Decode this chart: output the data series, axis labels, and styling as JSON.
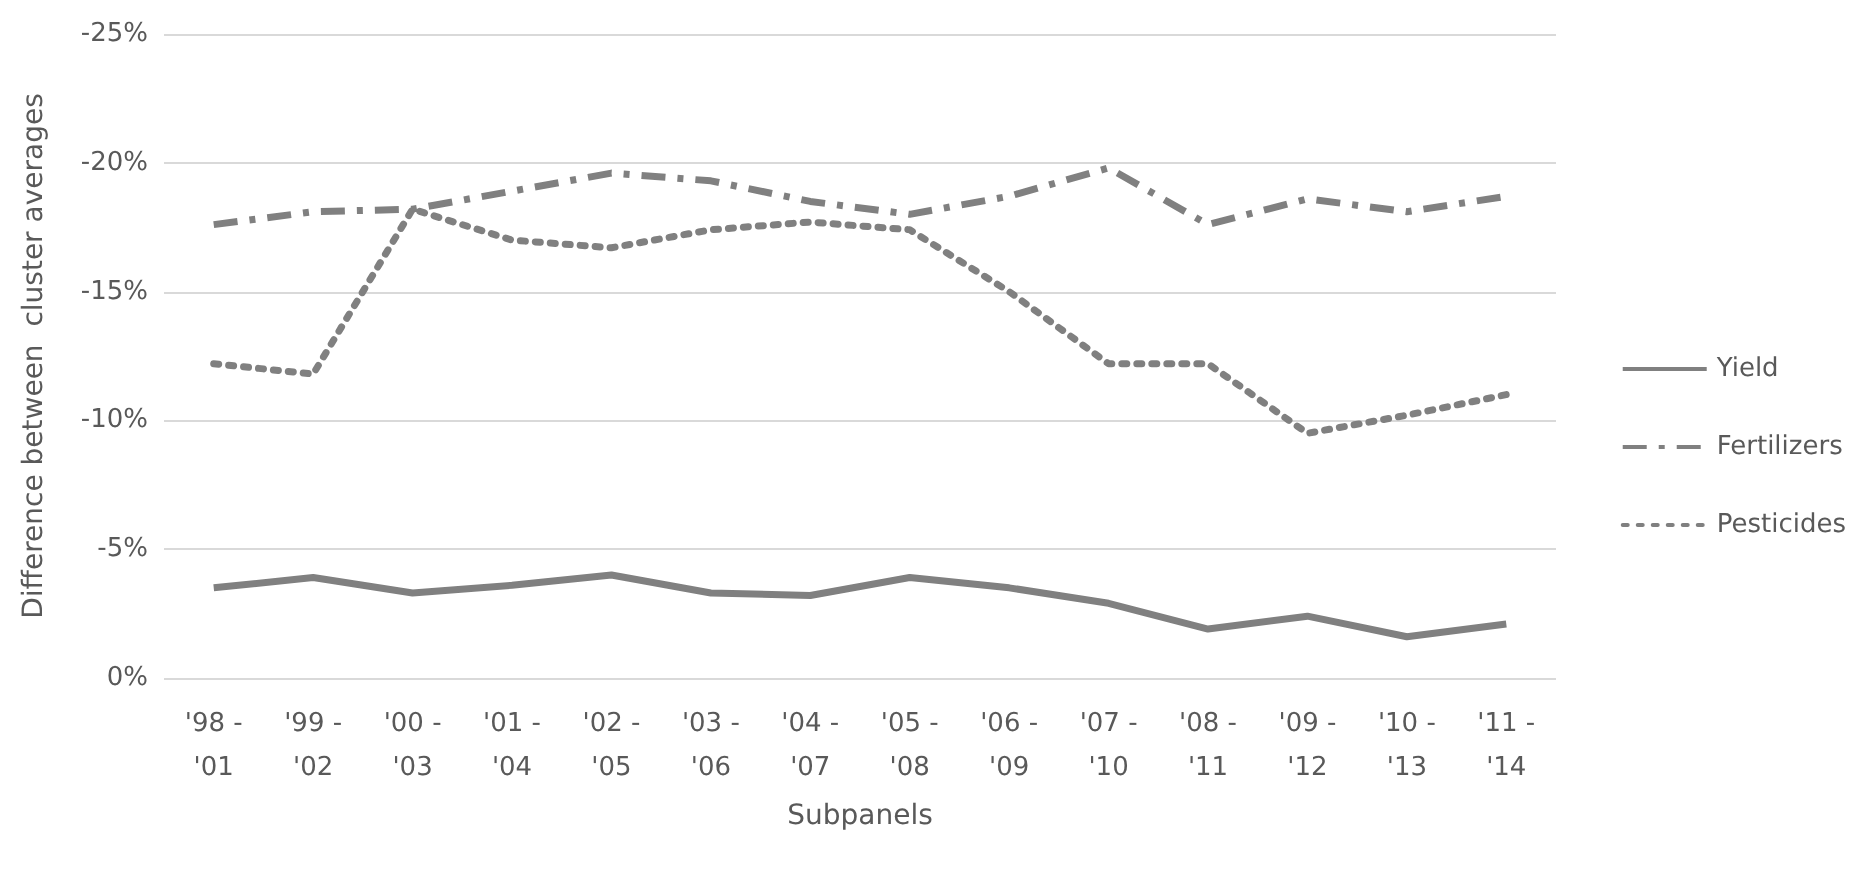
{
  "chart_data": {
    "type": "line",
    "xlabel": "Subpanels",
    "ylabel": "Difference between  cluster averages",
    "categories": [
      "'98 - '01",
      "'99 - '02",
      "'00 - '03",
      "'01 - '04",
      "'02 - '05",
      "'03 - '06",
      "'04 - '07",
      "'05 - '08",
      "'06 - '09",
      "'07 - '10",
      "'08 - '11",
      "'09 - '12",
      "'10 - '13",
      "'11 - '14"
    ],
    "series": [
      {
        "name": "Yield",
        "color": "#808080",
        "line_style": "solid",
        "values": [
          -3.5,
          -3.9,
          -3.3,
          -3.6,
          -4.0,
          -3.3,
          -3.2,
          -3.9,
          -3.5,
          -2.9,
          -1.9,
          -2.4,
          -1.6,
          -2.1
        ]
      },
      {
        "name": "Fertilizers",
        "color": "#808080",
        "line_style": "dashed",
        "values": [
          -17.6,
          -18.1,
          -18.2,
          -18.9,
          -19.6,
          -19.3,
          -18.5,
          -18.0,
          -18.7,
          -19.8,
          -17.6,
          -18.6,
          -18.1,
          -18.7
        ]
      },
      {
        "name": "Pesticides",
        "color": "#808080",
        "line_style": "dotted",
        "values": [
          -12.2,
          -11.8,
          -18.2,
          -17.0,
          -16.7,
          -17.4,
          -17.7,
          -17.4,
          -15.0,
          -12.2,
          -12.2,
          -9.5,
          -10.2,
          -11.0
        ]
      }
    ],
    "ylim": [
      0,
      -25
    ],
    "yticks": [
      {
        "value": 0,
        "label": "0%"
      },
      {
        "value": -5,
        "label": "-5%"
      },
      {
        "value": -10,
        "label": "-10%"
      },
      {
        "value": -15,
        "label": "-15%"
      },
      {
        "value": -20,
        "label": "-20%"
      },
      {
        "value": -25,
        "label": "-25%"
      }
    ],
    "grid": "y",
    "legend": "right",
    "marker": "none"
  }
}
